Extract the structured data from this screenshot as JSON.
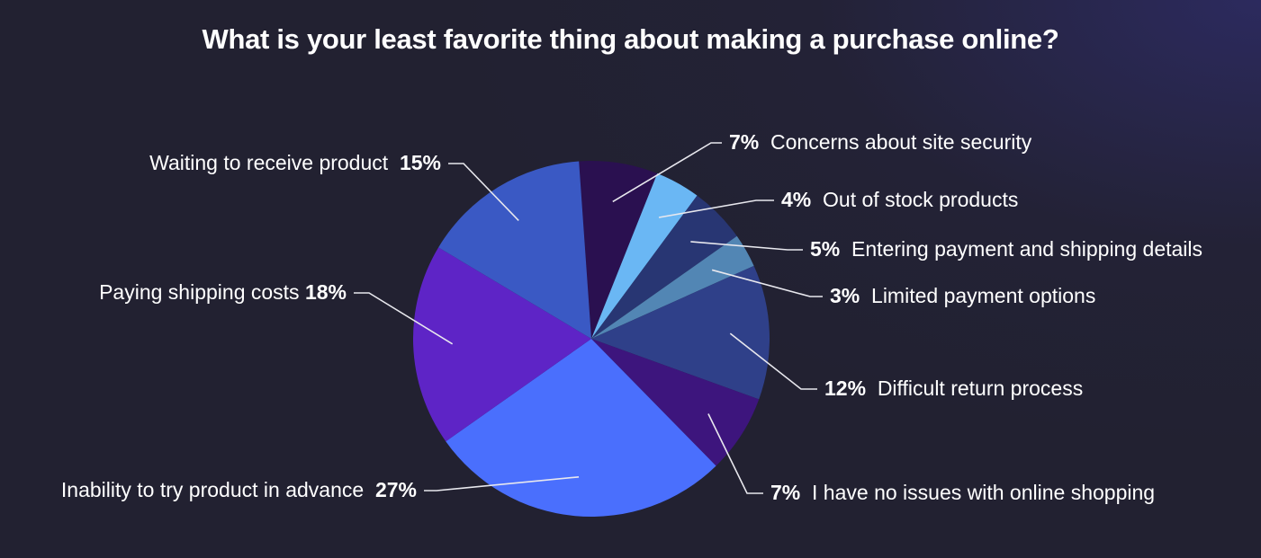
{
  "chart_data": {
    "type": "pie",
    "title": "What is your least favorite thing about making a purchase online?",
    "slices": [
      {
        "label": "Concerns about site security",
        "value": 7,
        "percent_label": "7%",
        "color": "#2a1050"
      },
      {
        "label": "Out of stock products",
        "value": 4,
        "percent_label": "4%",
        "color": "#6ab7f4"
      },
      {
        "label": "Entering payment and shipping details",
        "value": 5,
        "percent_label": "5%",
        "color": "#283673"
      },
      {
        "label": "Limited payment options",
        "value": 3,
        "percent_label": "3%",
        "color": "#5286b4"
      },
      {
        "label": "Difficult return process",
        "value": 12,
        "percent_label": "12%",
        "color": "#2f4089"
      },
      {
        "label": "I have no issues with online shopping",
        "value": 7,
        "percent_label": "7%",
        "color": "#3d157d"
      },
      {
        "label": "Inability to try product in advance",
        "value": 27,
        "percent_label": "27%",
        "color": "#4a6ffd"
      },
      {
        "label": "Paying shipping costs",
        "value": 18,
        "percent_label": "18%",
        "color": "#5e24c6"
      },
      {
        "label": "Waiting to receive product",
        "value": 15,
        "percent_label": "15%",
        "color": "#3a59c4"
      }
    ]
  }
}
